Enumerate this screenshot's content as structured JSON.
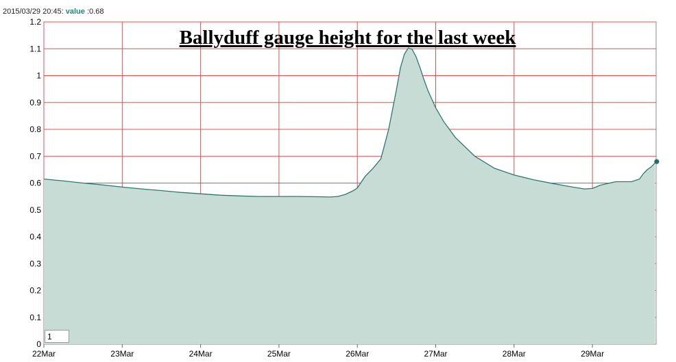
{
  "readout": {
    "timestamp": "2015/03/29 20:45:",
    "key": "value",
    "value": ":0.68"
  },
  "zoom_level": "1",
  "chart_data": {
    "type": "area",
    "title": "Ballyduff gauge height for the last week",
    "xlabel": "",
    "ylabel": "",
    "x_ticks": [
      "22Mar",
      "23Mar",
      "24Mar",
      "25Mar",
      "26Mar",
      "27Mar",
      "28Mar",
      "29Mar"
    ],
    "y_ticks": [
      "0",
      "0.1",
      "0.2",
      "0.3",
      "0.4",
      "0.5",
      "0.6",
      "0.7",
      "0.8",
      "0.9",
      "1",
      "1.1",
      "1.2"
    ],
    "xlim": [
      0,
      7.82
    ],
    "ylim": [
      0,
      1.2
    ],
    "grid": true,
    "colors": {
      "grid": "#e05050",
      "line": "#2a7a6a",
      "fill": "#c8dcd6",
      "marker": "#1f6e64"
    },
    "series": [
      {
        "x": [
          0,
          0.25,
          0.5,
          0.75,
          1,
          1.25,
          1.5,
          1.75,
          2,
          2.25,
          2.5,
          2.75,
          3,
          3.25,
          3.5,
          3.65,
          3.75,
          3.85,
          3.95,
          4.0,
          4.1,
          4.2,
          4.3,
          4.4,
          4.5,
          4.55,
          4.6,
          4.65,
          4.7,
          4.75,
          4.8,
          4.85,
          4.9,
          5.0,
          5.1,
          5.25,
          5.5,
          5.75,
          6,
          6.25,
          6.5,
          6.75,
          6.9,
          7,
          7.1,
          7.3,
          7.5,
          7.6,
          7.65,
          7.7,
          7.75,
          7.8
        ],
        "y": [
          0.615,
          0.608,
          0.6,
          0.593,
          0.585,
          0.578,
          0.572,
          0.565,
          0.56,
          0.555,
          0.552,
          0.55,
          0.55,
          0.55,
          0.549,
          0.548,
          0.55,
          0.558,
          0.572,
          0.582,
          0.625,
          0.655,
          0.69,
          0.8,
          0.95,
          1.03,
          1.08,
          1.103,
          1.098,
          1.07,
          1.03,
          0.985,
          0.945,
          0.88,
          0.83,
          0.77,
          0.7,
          0.655,
          0.63,
          0.612,
          0.598,
          0.585,
          0.578,
          0.58,
          0.592,
          0.605,
          0.605,
          0.615,
          0.635,
          0.65,
          0.66,
          0.675
        ]
      }
    ],
    "marker": {
      "x": 7.82,
      "y": 0.68
    }
  }
}
